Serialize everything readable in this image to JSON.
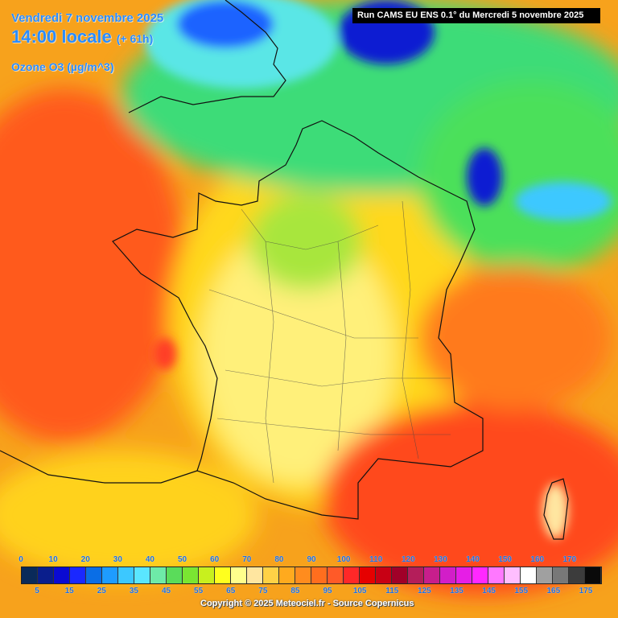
{
  "header": {
    "date": "Vendredi 7 novembre 2025",
    "time": "14:00 locale",
    "lead_time": "(+ 61h)",
    "parameter": "Ozone O3 (µg/m^3)"
  },
  "run_info": "Run CAMS EU ENS 0.1° du Mercredi 5 novembre 2025",
  "colors": {
    "sea_background": "#f7a21c",
    "high_ozone": "#ff4a1a",
    "mid_ozone": "#ffd21a",
    "low_ozone": "#24e07a",
    "very_low_ozone": "#1a66ff"
  },
  "scale": {
    "top_labels": [
      "0",
      "10",
      "20",
      "30",
      "40",
      "50",
      "60",
      "70",
      "80",
      "90",
      "100",
      "110",
      "120",
      "130",
      "140",
      "150",
      "160",
      "170"
    ],
    "bottom_labels": [
      "5",
      "15",
      "25",
      "35",
      "45",
      "55",
      "65",
      "75",
      "85",
      "95",
      "105",
      "115",
      "125",
      "135",
      "145",
      "155",
      "165",
      "175"
    ],
    "swatch_colors": [
      "#0a2a5a",
      "#0a1e8c",
      "#0a0ad2",
      "#1a28ff",
      "#0a6ee6",
      "#1e9cff",
      "#3cc8ff",
      "#5ae6ff",
      "#6eeaa8",
      "#5adc5a",
      "#7ae632",
      "#c8f01e",
      "#ffff1e",
      "#ffff8c",
      "#ffe6a0",
      "#ffd246",
      "#ffaa1e",
      "#ff8c1e",
      "#ff6e1e",
      "#ff5a28",
      "#ff2828",
      "#e60000",
      "#c80014",
      "#a00028",
      "#b41e5a",
      "#c81e8c",
      "#d21ec8",
      "#e61ee6",
      "#ff28ff",
      "#ff78ff",
      "#ffbeff",
      "#ffffff",
      "#a0a0a0",
      "#787878",
      "#3c3c3c",
      "#0a0a0a"
    ]
  },
  "copyright": "Copyright © 2025 Meteociel.fr - Source Copernicus"
}
